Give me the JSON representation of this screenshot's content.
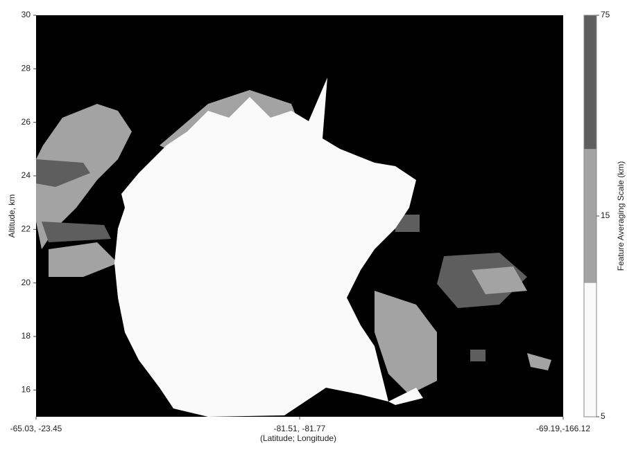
{
  "chart_data": {
    "type": "heatmap",
    "y_label": "Altitude, km",
    "x_label": "(Latitude; Longitude)",
    "x_tick_labels": [
      "-65.03, -23.45",
      "-81.51, -81.77",
      "-69.19,-166.12"
    ],
    "ylim": [
      15,
      30
    ],
    "yticks": [
      16,
      18,
      20,
      22,
      24,
      26,
      28,
      30
    ],
    "background": "#000000",
    "colorbar": {
      "label": "Feature Averaging Scale (km)",
      "ticks": [
        5,
        15,
        75
      ],
      "colors": [
        "#fafafa",
        "#a3a3a3",
        "#5e5e5e"
      ]
    }
  }
}
